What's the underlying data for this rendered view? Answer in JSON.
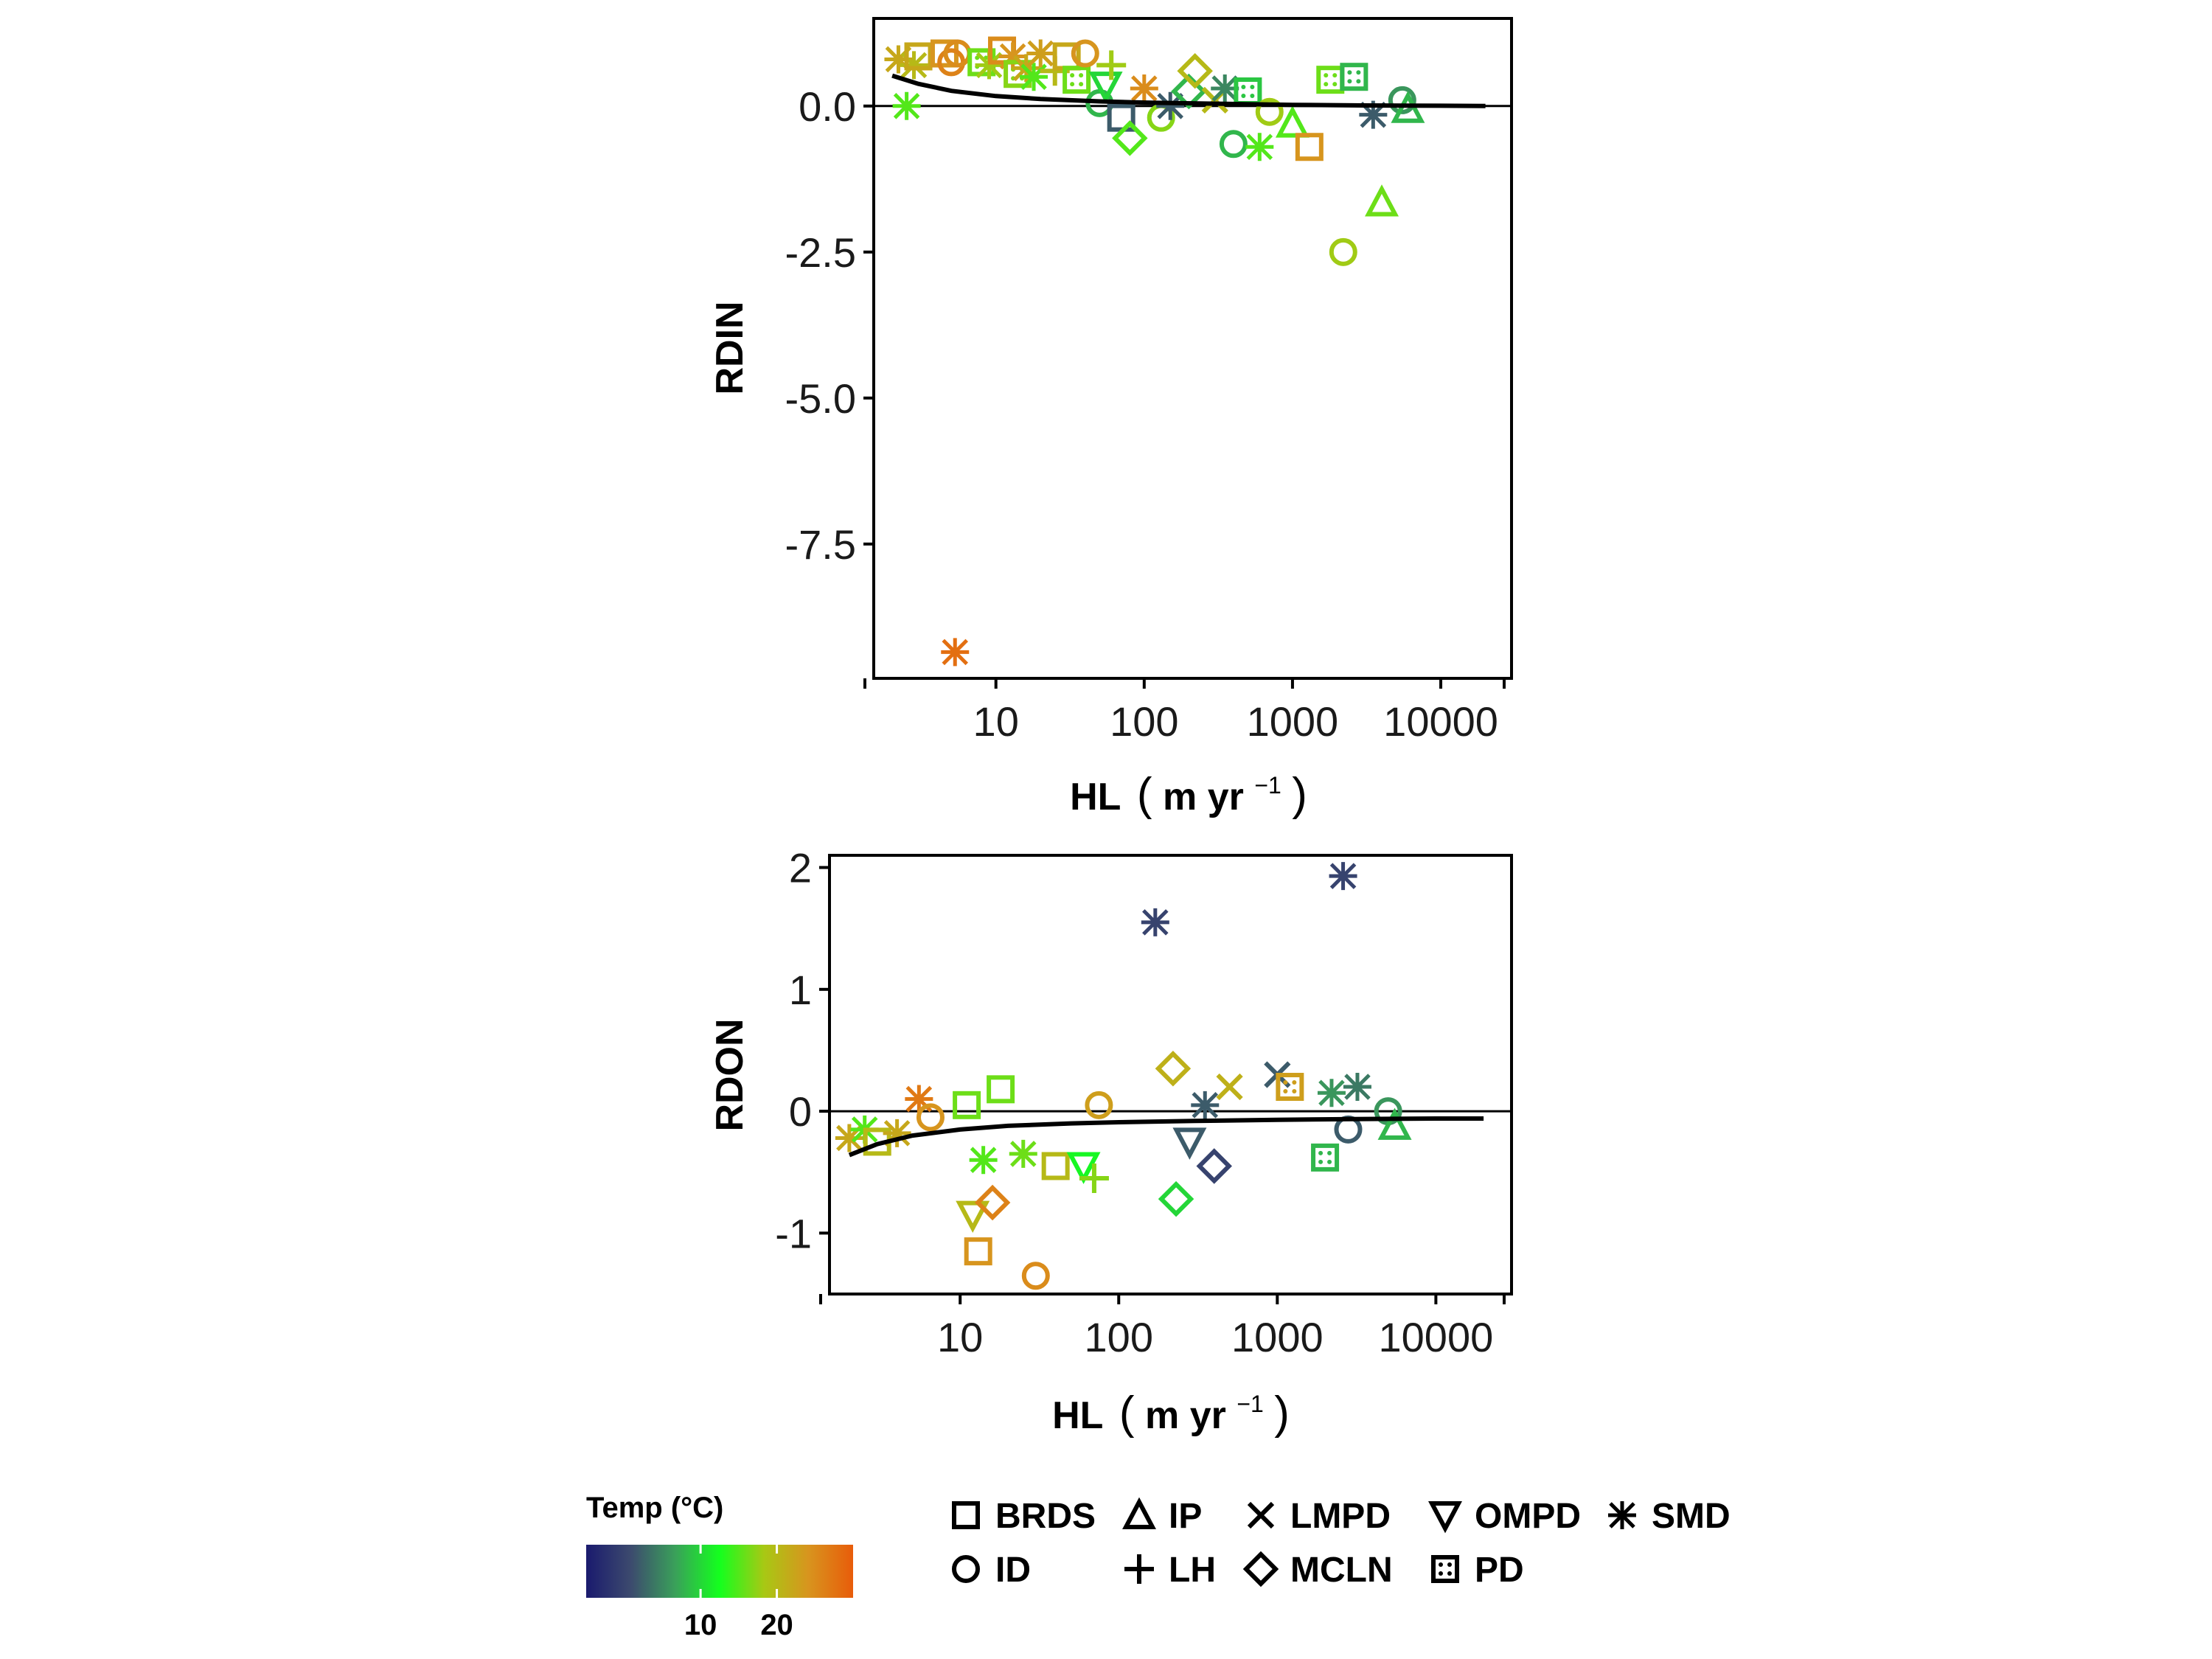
{
  "colors": {
    "temperature_scale": [
      "#1a1a6e",
      "#3c4a6e",
      "#3aa05a",
      "#14ff1e",
      "#a8c814",
      "#d8941e",
      "#e85c0a"
    ],
    "axis": "#000000",
    "fit_line": "#000000"
  },
  "legend": {
    "colorbar_title": "Temp (°C)",
    "colorbar_ticks": [
      10,
      20
    ],
    "colorbar_range": [
      -5,
      30
    ],
    "shapes": [
      {
        "label": "BRDS",
        "icon": "square-icon"
      },
      {
        "label": "ID",
        "icon": "circle-icon"
      },
      {
        "label": "IP",
        "icon": "triangle-icon"
      },
      {
        "label": "LH",
        "icon": "plus-icon"
      },
      {
        "label": "LMPD",
        "icon": "cross-icon"
      },
      {
        "label": "MCLN",
        "icon": "diamond-icon"
      },
      {
        "label": "OMPD",
        "icon": "triangle-down-icon"
      },
      {
        "label": "PD",
        "icon": "square-dot-icon"
      },
      {
        "label": "SMD",
        "icon": "asterisk-icon"
      }
    ]
  },
  "chart_data": [
    {
      "type": "scatter",
      "ylabel": "RDIN",
      "xlabel": "HL (m yr−1)",
      "x_scale": "log",
      "xlim": [
        1.5,
        30000
      ],
      "ylim": [
        -9.8,
        1.5
      ],
      "x_ticks": [
        10,
        100,
        1000,
        10000
      ],
      "x_tick_labels": [
        "10",
        "100",
        "1000",
        "10000"
      ],
      "y_ticks": [
        0,
        -2.5,
        -5,
        -7.5
      ],
      "y_tick_labels": [
        "0.0",
        "-2.5",
        "-5.0",
        "-7.5"
      ],
      "reference_line_y": 0,
      "fit_curve": [
        [
          2.0,
          0.52
        ],
        [
          3,
          0.38
        ],
        [
          5,
          0.26
        ],
        [
          10,
          0.17
        ],
        [
          20,
          0.12
        ],
        [
          50,
          0.08
        ],
        [
          100,
          0.06
        ],
        [
          300,
          0.04
        ],
        [
          1000,
          0.02
        ],
        [
          3000,
          0.01
        ],
        [
          10000,
          0.005
        ],
        [
          20000,
          0.0
        ]
      ],
      "points": [
        {
          "x": 2.2,
          "y": 0.8,
          "shape": "SMD",
          "temp": 22
        },
        {
          "x": 2.5,
          "y": 0.0,
          "shape": "SMD",
          "temp": 15
        },
        {
          "x": 2.8,
          "y": 0.7,
          "shape": "SMD",
          "temp": 20
        },
        {
          "x": 3.0,
          "y": 0.85,
          "shape": "BRDS",
          "temp": 22
        },
        {
          "x": 4.5,
          "y": 0.9,
          "shape": "BRDS",
          "temp": 24
        },
        {
          "x": 5.0,
          "y": 0.75,
          "shape": "ID",
          "temp": 26
        },
        {
          "x": 5.5,
          "y": 0.9,
          "shape": "ID",
          "temp": 25
        },
        {
          "x": 5.3,
          "y": -9.35,
          "shape": "SMD",
          "temp": 28
        },
        {
          "x": 8,
          "y": 0.75,
          "shape": "PD",
          "temp": 16
        },
        {
          "x": 9,
          "y": 0.7,
          "shape": "SMD",
          "temp": 18
        },
        {
          "x": 11,
          "y": 0.95,
          "shape": "BRDS",
          "temp": 25
        },
        {
          "x": 13,
          "y": 0.85,
          "shape": "SMD",
          "temp": 24
        },
        {
          "x": 14,
          "y": 0.55,
          "shape": "PD",
          "temp": 17
        },
        {
          "x": 16,
          "y": 0.65,
          "shape": "SMD",
          "temp": 22
        },
        {
          "x": 18,
          "y": 0.5,
          "shape": "SMD",
          "temp": 15
        },
        {
          "x": 20,
          "y": 0.9,
          "shape": "SMD",
          "temp": 23
        },
        {
          "x": 25,
          "y": 0.6,
          "shape": "LH",
          "temp": 20
        },
        {
          "x": 30,
          "y": 0.85,
          "shape": "BRDS",
          "temp": 22
        },
        {
          "x": 35,
          "y": 0.45,
          "shape": "PD",
          "temp": 16
        },
        {
          "x": 40,
          "y": 0.9,
          "shape": "ID",
          "temp": 24
        },
        {
          "x": 50,
          "y": 0.05,
          "shape": "ID",
          "temp": 8
        },
        {
          "x": 55,
          "y": 0.35,
          "shape": "OMPD",
          "temp": 10
        },
        {
          "x": 60,
          "y": 0.7,
          "shape": "LH",
          "temp": 18
        },
        {
          "x": 70,
          "y": -0.2,
          "shape": "BRDS",
          "temp": 2
        },
        {
          "x": 80,
          "y": -0.55,
          "shape": "MCLN",
          "temp": 15
        },
        {
          "x": 100,
          "y": 0.3,
          "shape": "SMD",
          "temp": 25
        },
        {
          "x": 130,
          "y": -0.2,
          "shape": "ID",
          "temp": 17
        },
        {
          "x": 150,
          "y": 0.0,
          "shape": "SMD",
          "temp": 2
        },
        {
          "x": 200,
          "y": 0.25,
          "shape": "MCLN",
          "temp": 8
        },
        {
          "x": 220,
          "y": 0.6,
          "shape": "MCLN",
          "temp": 20
        },
        {
          "x": 300,
          "y": 0.1,
          "shape": "LMPD",
          "temp": 20
        },
        {
          "x": 350,
          "y": 0.3,
          "shape": "SMD",
          "temp": 5
        },
        {
          "x": 400,
          "y": -0.65,
          "shape": "ID",
          "temp": 8
        },
        {
          "x": 500,
          "y": 0.25,
          "shape": "PD",
          "temp": 9
        },
        {
          "x": 600,
          "y": -0.7,
          "shape": "SMD",
          "temp": 15
        },
        {
          "x": 700,
          "y": -0.1,
          "shape": "ID",
          "temp": 18
        },
        {
          "x": 1000,
          "y": -0.3,
          "shape": "IP",
          "temp": 15
        },
        {
          "x": 1300,
          "y": -0.7,
          "shape": "BRDS",
          "temp": 24
        },
        {
          "x": 1800,
          "y": 0.45,
          "shape": "PD",
          "temp": 16
        },
        {
          "x": 2200,
          "y": -2.5,
          "shape": "ID",
          "temp": 18
        },
        {
          "x": 2600,
          "y": 0.5,
          "shape": "PD",
          "temp": 8
        },
        {
          "x": 3500,
          "y": -0.15,
          "shape": "SMD",
          "temp": 2
        },
        {
          "x": 4000,
          "y": -1.65,
          "shape": "IP",
          "temp": 16
        },
        {
          "x": 5500,
          "y": 0.1,
          "shape": "ID",
          "temp": 6
        },
        {
          "x": 6000,
          "y": -0.05,
          "shape": "IP",
          "temp": 8
        }
      ]
    },
    {
      "type": "scatter",
      "ylabel": "RDON",
      "xlabel": "HL (m yr−1)",
      "x_scale": "log",
      "xlim": [
        1.5,
        30000
      ],
      "ylim": [
        -1.5,
        2.1
      ],
      "x_ticks": [
        10,
        100,
        1000,
        10000
      ],
      "x_tick_labels": [
        "10",
        "100",
        "1000",
        "10000"
      ],
      "y_ticks": [
        2,
        1,
        0,
        -1
      ],
      "y_tick_labels": [
        "2",
        "1",
        "0",
        "-1"
      ],
      "reference_line_y": 0,
      "fit_curve": [
        [
          2.0,
          -0.36
        ],
        [
          3,
          -0.27
        ],
        [
          5,
          -0.2
        ],
        [
          10,
          -0.15
        ],
        [
          20,
          -0.12
        ],
        [
          50,
          -0.1
        ],
        [
          100,
          -0.09
        ],
        [
          300,
          -0.08
        ],
        [
          1000,
          -0.07
        ],
        [
          3000,
          -0.065
        ],
        [
          10000,
          -0.06
        ],
        [
          20000,
          -0.06
        ]
      ],
      "points": [
        {
          "x": 2.0,
          "y": -0.22,
          "shape": "SMD",
          "temp": 22
        },
        {
          "x": 2.5,
          "y": -0.15,
          "shape": "SMD",
          "temp": 15
        },
        {
          "x": 3.0,
          "y": -0.25,
          "shape": "BRDS",
          "temp": 20
        },
        {
          "x": 4.0,
          "y": -0.18,
          "shape": "SMD",
          "temp": 22
        },
        {
          "x": 5.5,
          "y": 0.1,
          "shape": "SMD",
          "temp": 27
        },
        {
          "x": 6.5,
          "y": -0.05,
          "shape": "ID",
          "temp": 24
        },
        {
          "x": 11,
          "y": 0.05,
          "shape": "BRDS",
          "temp": 16
        },
        {
          "x": 12,
          "y": -0.85,
          "shape": "OMPD",
          "temp": 20
        },
        {
          "x": 13,
          "y": -1.15,
          "shape": "BRDS",
          "temp": 24
        },
        {
          "x": 14,
          "y": -0.4,
          "shape": "SMD",
          "temp": 15
        },
        {
          "x": 16,
          "y": -0.75,
          "shape": "MCLN",
          "temp": 26
        },
        {
          "x": 18,
          "y": 0.18,
          "shape": "BRDS",
          "temp": 16
        },
        {
          "x": 25,
          "y": -0.35,
          "shape": "SMD",
          "temp": 16
        },
        {
          "x": 30,
          "y": -1.35,
          "shape": "ID",
          "temp": 25
        },
        {
          "x": 40,
          "y": -0.45,
          "shape": "BRDS",
          "temp": 20
        },
        {
          "x": 60,
          "y": -0.45,
          "shape": "OMPD",
          "temp": 12
        },
        {
          "x": 70,
          "y": -0.55,
          "shape": "LH",
          "temp": 17
        },
        {
          "x": 75,
          "y": 0.05,
          "shape": "ID",
          "temp": 23
        },
        {
          "x": 170,
          "y": 1.55,
          "shape": "SMD",
          "temp": 0
        },
        {
          "x": 220,
          "y": 0.35,
          "shape": "MCLN",
          "temp": 21
        },
        {
          "x": 230,
          "y": -0.72,
          "shape": "MCLN",
          "temp": 10
        },
        {
          "x": 280,
          "y": -0.25,
          "shape": "OMPD",
          "temp": 2
        },
        {
          "x": 350,
          "y": 0.05,
          "shape": "SMD",
          "temp": 2
        },
        {
          "x": 400,
          "y": -0.45,
          "shape": "MCLN",
          "temp": 0
        },
        {
          "x": 500,
          "y": 0.2,
          "shape": "LMPD",
          "temp": 21
        },
        {
          "x": 1000,
          "y": 0.3,
          "shape": "LMPD",
          "temp": 2
        },
        {
          "x": 1200,
          "y": 0.2,
          "shape": "PD",
          "temp": 23
        },
        {
          "x": 2000,
          "y": -0.38,
          "shape": "PD",
          "temp": 8
        },
        {
          "x": 2200,
          "y": 0.15,
          "shape": "SMD",
          "temp": 6
        },
        {
          "x": 2600,
          "y": 1.93,
          "shape": "SMD",
          "temp": 0
        },
        {
          "x": 2800,
          "y": -0.15,
          "shape": "ID",
          "temp": 2
        },
        {
          "x": 3200,
          "y": 0.2,
          "shape": "SMD",
          "temp": 4
        },
        {
          "x": 5000,
          "y": 0.0,
          "shape": "ID",
          "temp": 6
        },
        {
          "x": 5500,
          "y": -0.12,
          "shape": "IP",
          "temp": 8
        }
      ]
    }
  ]
}
